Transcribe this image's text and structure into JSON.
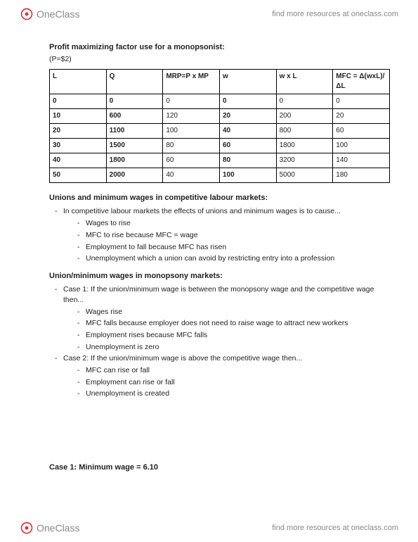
{
  "brand": "OneClass",
  "findText": "find more resources at oneclass.com",
  "doc": {
    "title": "Profit maximizing factor use for a monopsonist:",
    "subtitle": "(P=$2)",
    "table": {
      "columns": [
        "L",
        "Q",
        "MRP=P x MP",
        "w",
        "w x L",
        "MFC = Δ(wxL)/ΔL"
      ],
      "boldCols": [
        true,
        true,
        false,
        true,
        false,
        false
      ],
      "rows": [
        [
          "0",
          "0",
          "0",
          "0",
          "0",
          "0"
        ],
        [
          "10",
          "600",
          "120",
          "20",
          "200",
          "20"
        ],
        [
          "20",
          "1100",
          "100",
          "40",
          "800",
          "60"
        ],
        [
          "30",
          "1500",
          "80",
          "60",
          "1800",
          "100"
        ],
        [
          "40",
          "1800",
          "60",
          "80",
          "3200",
          "140"
        ],
        [
          "50",
          "2000",
          "40",
          "100",
          "5000",
          "180"
        ]
      ]
    },
    "section1": {
      "title": "Unions and minimum wages in competitive labour markets:",
      "lead": "In competitive labour markets the effects of unions and minimum wages is to cause...",
      "items": [
        "Wages to rise",
        "MFC to rise because MFC = wage",
        "Employment to fall because MFC has risen",
        "Unemployment which a union can avoid by restricting entry into a profession"
      ]
    },
    "section2": {
      "title": "Union/minimum wages in monopsony markets:",
      "case1Lead": "Case 1: If the union/minimum wage is between the monopsony wage and the competitive wage then...",
      "case1Items": [
        "Wages rise",
        "MFC falls because employer does not need to raise wage to attract new workers",
        "Employment rises because MFC falls",
        "Unemployment is zero"
      ],
      "case2Lead": "Case 2: If the union/minimum wage is above the competitive wage then...",
      "case2Items": [
        "MFC can rise or fall",
        "Employment can rise or fall",
        "Unemployment is created"
      ]
    },
    "caseLine": "Case 1: Minimum wage = 6.10"
  }
}
